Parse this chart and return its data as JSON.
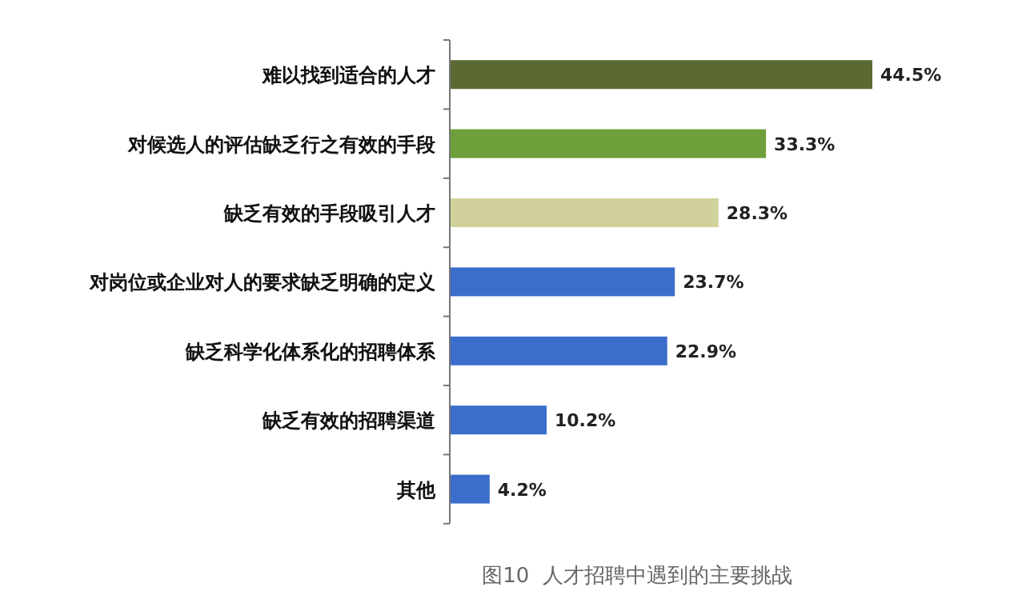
{
  "chart_data": {
    "type": "bar",
    "orientation": "horizontal",
    "categories": [
      "难以找到适合的人才",
      "对候选人的评估缺乏行之有效的手段",
      "缺乏有效的手段吸引人才",
      "对岗位或企业对人的要求缺乏明确的定义",
      "缺乏科学化体系化的招聘体系",
      "缺乏有效的招聘渠道",
      "其他"
    ],
    "values": [
      44.5,
      33.3,
      28.3,
      23.7,
      22.9,
      10.2,
      4.2
    ],
    "value_labels": [
      "44.5%",
      "33.3%",
      "28.3%",
      "23.7%",
      "22.9%",
      "10.2%",
      "4.2%"
    ],
    "colors": [
      "#5b6a33",
      "#6e9f3a",
      "#d1d19b",
      "#3b6dca",
      "#3b6dca",
      "#3b6dca",
      "#3b6dca"
    ],
    "annotations": [
      "图10  人才招聘中遇到的主要挑战"
    ]
  }
}
